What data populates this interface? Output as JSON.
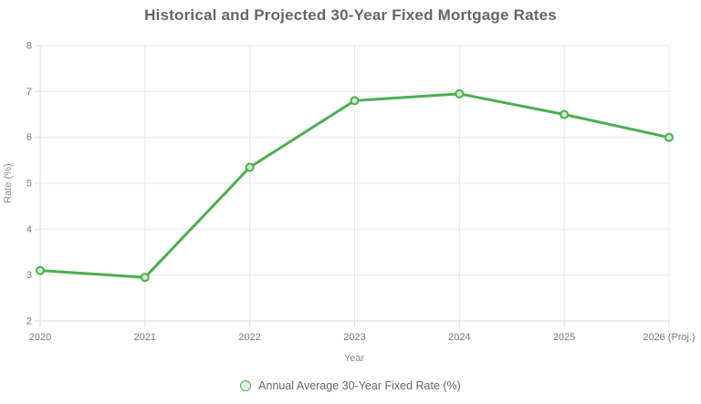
{
  "chart_data": {
    "type": "line",
    "title": "Historical and Projected 30-Year Fixed Mortgage Rates",
    "categories": [
      "2020",
      "2021",
      "2022",
      "2023",
      "2024",
      "2025",
      "2026 (Proj.)"
    ],
    "values": [
      3.1,
      2.95,
      5.35,
      6.8,
      6.95,
      6.5,
      6.0
    ],
    "series_name": "Annual Average 30-Year Fixed Rate (%)",
    "xlabel": "Year",
    "ylabel": "Rate (%)",
    "ylim": [
      2,
      8
    ],
    "ytick_step": 1,
    "yticks": [
      2,
      3,
      4,
      5,
      6,
      7,
      8
    ],
    "grid": true,
    "legend_position": "bottom",
    "colors": {
      "line": "#4caf50",
      "point_fill": "#cfe9d0",
      "grid": "#e9e9e9",
      "axis": "#dddddd",
      "tick_text": "#777777",
      "axis_title_text": "#8a8a8a",
      "title_text": "#666666",
      "legend_text": "#666666"
    }
  },
  "legend": {
    "label": "Annual Average 30-Year Fixed Rate (%)"
  }
}
